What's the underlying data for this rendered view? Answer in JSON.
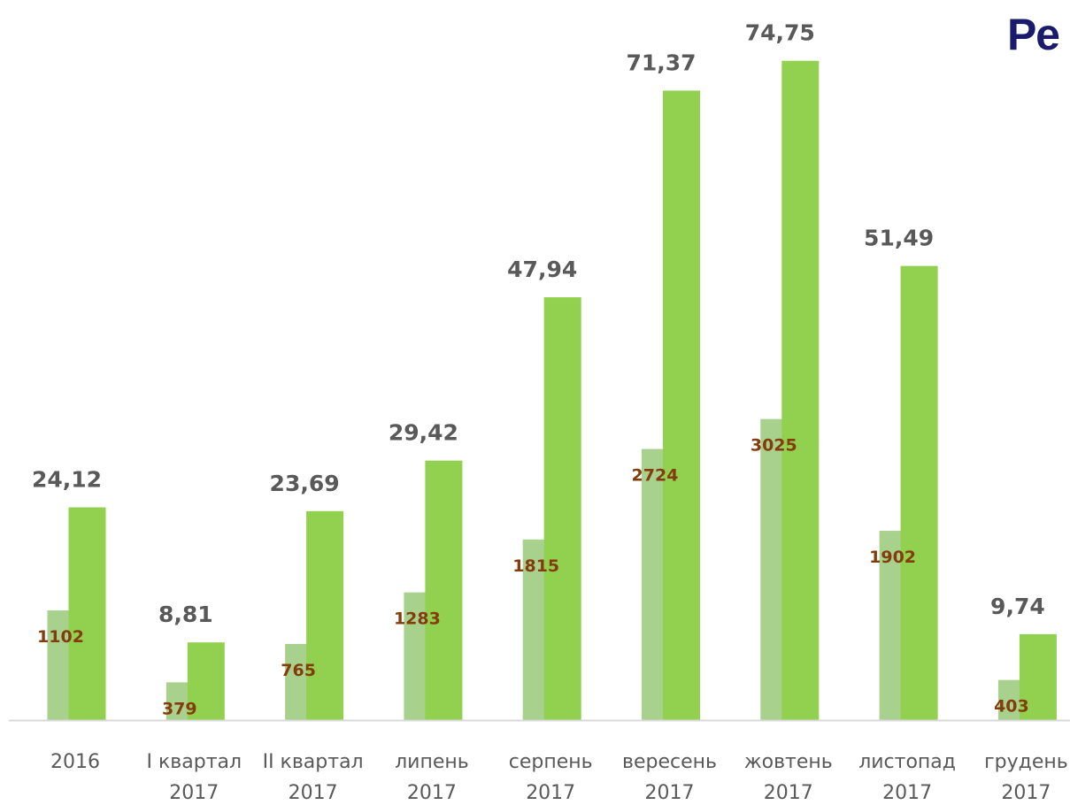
{
  "title": "Ре",
  "colors": {
    "secondary_bar": "#a9d18e",
    "primary_bar": "#92d050",
    "primary_label": "#595959",
    "secondary_label": "#843c0c",
    "axis": "#d9d9d9",
    "category_label": "#595959",
    "title": "#1b1b6e"
  },
  "chart_data": {
    "type": "bar",
    "categories": [
      [
        "2016"
      ],
      [
        "І квартал",
        "2017"
      ],
      [
        "ІІ квартал",
        "2017"
      ],
      [
        "липень",
        "2017"
      ],
      [
        "серпень",
        "2017"
      ],
      [
        "вересень",
        "2017"
      ],
      [
        "жовтень",
        "2017"
      ],
      [
        "листопад",
        "2017"
      ],
      [
        "грудень",
        "2017"
      ]
    ],
    "series": [
      {
        "values": [
          1102,
          379,
          765,
          1283,
          1815,
          2724,
          3025,
          1902,
          403
        ],
        "labels": [
          "1102",
          "379",
          "765",
          "1283",
          "1815",
          "2724",
          "3025",
          "1902",
          "403"
        ]
      },
      {
        "values": [
          24.12,
          8.81,
          23.69,
          29.42,
          47.94,
          71.37,
          74.75,
          51.49,
          9.74
        ],
        "labels": [
          "24,12",
          "8,81",
          "23,69",
          "29,42",
          "47,94",
          "71,37",
          "74,75",
          "51,49",
          "9,74"
        ]
      }
    ],
    "legend": "none",
    "grid": false,
    "y_axis_visible": false
  }
}
